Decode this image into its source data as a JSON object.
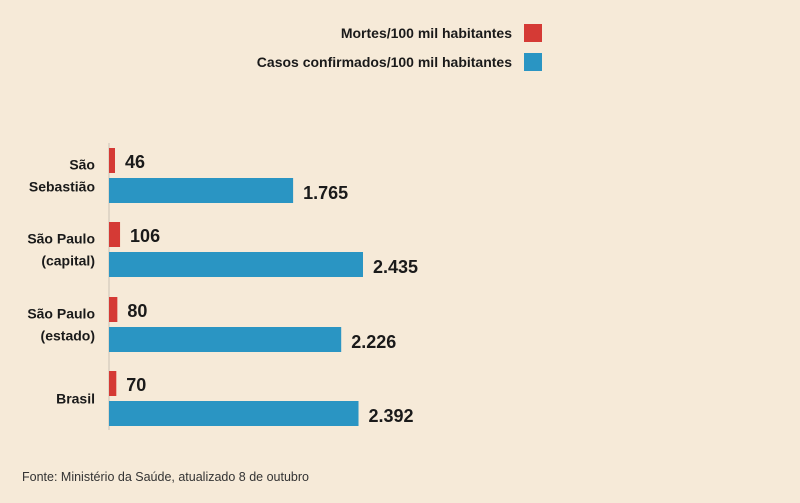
{
  "chart_data": {
    "type": "bar",
    "orientation": "horizontal",
    "categories": [
      [
        "São",
        "Sebastião"
      ],
      [
        "São Paulo",
        "(capital)"
      ],
      [
        "São Paulo",
        "(estado)"
      ],
      [
        "Brasil"
      ]
    ],
    "series": [
      {
        "name": "Mortes/100 mil habitantes",
        "color": "#d53a35",
        "values": [
          46,
          106,
          80,
          70
        ],
        "labels": [
          "46",
          "106",
          "80",
          "70"
        ]
      },
      {
        "name": "Casos confirmados/100 mil habitantes",
        "color": "#2a95c3",
        "values": [
          1765,
          2435,
          2226,
          2392
        ],
        "labels": [
          "1.765",
          "2.435",
          "2.226",
          "2.392"
        ]
      }
    ],
    "legend_position": "top-right",
    "xlim": [
      0,
      2435
    ],
    "grid": false
  },
  "source": "Fonte: Ministério da Saúde, atualizado 8 de outubro"
}
